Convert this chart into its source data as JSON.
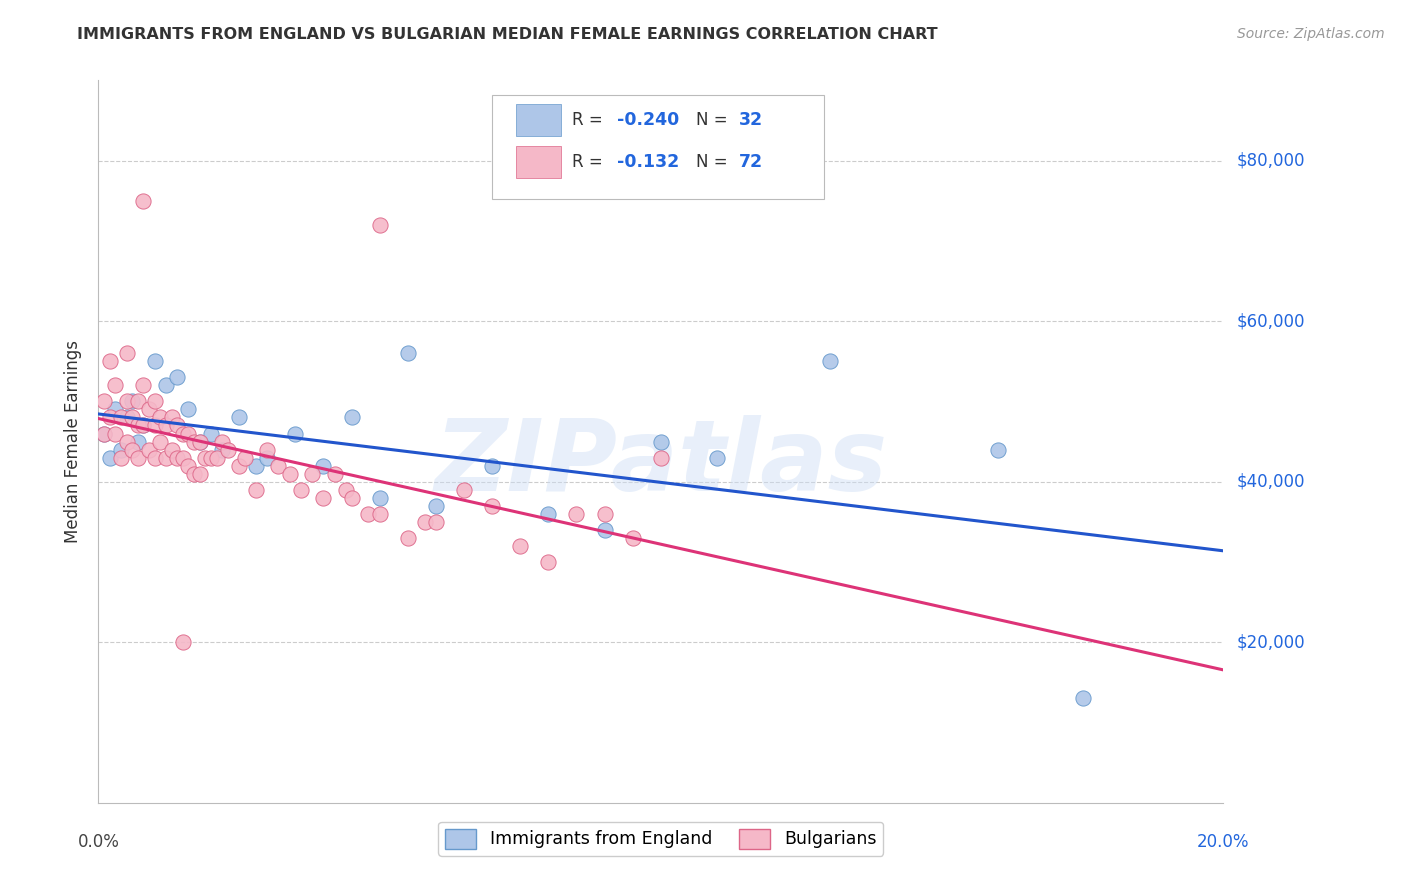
{
  "title": "IMMIGRANTS FROM ENGLAND VS BULGARIAN MEDIAN FEMALE EARNINGS CORRELATION CHART",
  "source": "Source: ZipAtlas.com",
  "ylabel": "Median Female Earnings",
  "watermark": "ZIPatlas",
  "series": [
    {
      "name": "Immigrants from England",
      "color": "#aec6e8",
      "edge_color": "#6699cc",
      "R": -0.24,
      "N": 32,
      "line_color": "#2255cc",
      "x": [
        0.001,
        0.002,
        0.003,
        0.004,
        0.005,
        0.006,
        0.007,
        0.008,
        0.01,
        0.012,
        0.014,
        0.016,
        0.018,
        0.02,
        0.022,
        0.025,
        0.028,
        0.03,
        0.035,
        0.04,
        0.045,
        0.05,
        0.055,
        0.06,
        0.07,
        0.08,
        0.09,
        0.1,
        0.11,
        0.13,
        0.16,
        0.175
      ],
      "y": [
        46000,
        43000,
        49000,
        44000,
        48000,
        50000,
        45000,
        47000,
        55000,
        52000,
        53000,
        49000,
        45000,
        46000,
        44000,
        48000,
        42000,
        43000,
        46000,
        42000,
        48000,
        38000,
        56000,
        37000,
        42000,
        36000,
        34000,
        45000,
        43000,
        55000,
        44000,
        13000
      ]
    },
    {
      "name": "Bulgarians",
      "color": "#f5b8c8",
      "edge_color": "#dd6688",
      "R": -0.132,
      "N": 72,
      "line_color": "#dd3377",
      "x": [
        0.001,
        0.001,
        0.002,
        0.002,
        0.003,
        0.003,
        0.004,
        0.004,
        0.005,
        0.005,
        0.005,
        0.006,
        0.006,
        0.007,
        0.007,
        0.007,
        0.008,
        0.008,
        0.009,
        0.009,
        0.01,
        0.01,
        0.01,
        0.011,
        0.011,
        0.012,
        0.012,
        0.013,
        0.013,
        0.014,
        0.014,
        0.015,
        0.015,
        0.016,
        0.016,
        0.017,
        0.017,
        0.018,
        0.018,
        0.019,
        0.02,
        0.021,
        0.022,
        0.023,
        0.025,
        0.026,
        0.028,
        0.03,
        0.032,
        0.034,
        0.036,
        0.038,
        0.04,
        0.042,
        0.044,
        0.045,
        0.048,
        0.05,
        0.055,
        0.058,
        0.06,
        0.065,
        0.07,
        0.075,
        0.08,
        0.085,
        0.09,
        0.095,
        0.1,
        0.05,
        0.015,
        0.008
      ],
      "y": [
        50000,
        46000,
        55000,
        48000,
        52000,
        46000,
        48000,
        43000,
        56000,
        50000,
        45000,
        48000,
        44000,
        50000,
        47000,
        43000,
        52000,
        47000,
        49000,
        44000,
        50000,
        47000,
        43000,
        48000,
        45000,
        47000,
        43000,
        48000,
        44000,
        47000,
        43000,
        46000,
        43000,
        46000,
        42000,
        45000,
        41000,
        45000,
        41000,
        43000,
        43000,
        43000,
        45000,
        44000,
        42000,
        43000,
        39000,
        44000,
        42000,
        41000,
        39000,
        41000,
        38000,
        41000,
        39000,
        38000,
        36000,
        36000,
        33000,
        35000,
        35000,
        39000,
        37000,
        32000,
        30000,
        36000,
        36000,
        33000,
        43000,
        72000,
        20000,
        75000
      ]
    }
  ],
  "xlim": [
    0.0,
    0.2
  ],
  "ylim": [
    0,
    90000
  ],
  "yticks": [
    0,
    20000,
    40000,
    60000,
    80000
  ],
  "ytick_labels": [
    "",
    "$20,000",
    "$40,000",
    "$60,000",
    "$80,000"
  ],
  "xticks": [
    0.0,
    0.05,
    0.1,
    0.15,
    0.2
  ],
  "background_color": "#ffffff",
  "grid_color": "#cccccc",
  "title_color": "#333333",
  "label_color": "#2266dd",
  "dot_size": 120
}
